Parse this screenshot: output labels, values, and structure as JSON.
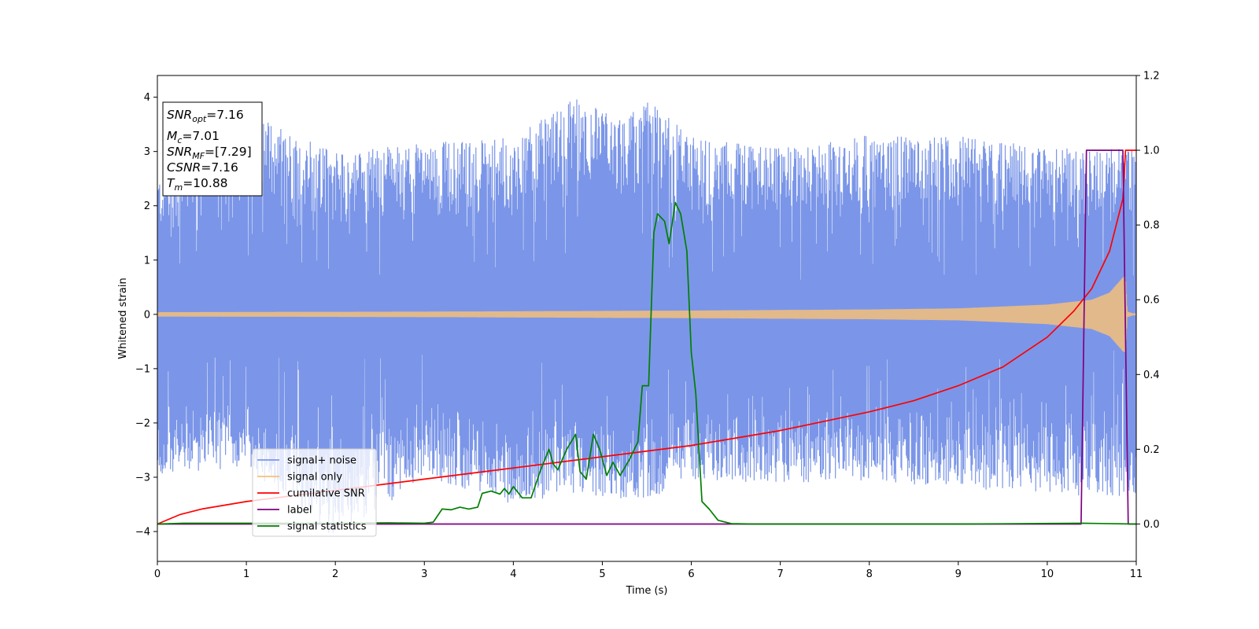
{
  "chart_data": {
    "type": "line",
    "xlabel": "Time (s)",
    "ylabel": "Whitened strain",
    "xlim": [
      0,
      11
    ],
    "ylim_left": [
      -4.55,
      4.4
    ],
    "ylim_right": [
      -0.1,
      1.2
    ],
    "x_ticks": [
      0,
      1,
      2,
      3,
      4,
      5,
      6,
      7,
      8,
      9,
      10,
      11
    ],
    "y_ticks_left": [
      -4,
      -3,
      -2,
      -1,
      0,
      1,
      2,
      3,
      4
    ],
    "y_ticks_right": [
      0.0,
      0.2,
      0.4,
      0.6,
      0.8,
      1.0,
      1.2
    ],
    "y_tick_labels_right": [
      "0.0",
      "0.2",
      "0.4",
      "0.6",
      "0.8",
      "1.0",
      "1.2"
    ],
    "grid": false,
    "legend_placement": "lower-left",
    "annotation_box": {
      "lines": [
        {
          "sym": "SNR",
          "sub": "opt",
          "val": "=7.16"
        },
        {
          "sym": "M",
          "sub": "c",
          "val": "=7.01"
        },
        {
          "sym": "SNR",
          "sub": "MF",
          "val": "=[7.29]"
        },
        {
          "sym": "CSNR",
          "sub": "",
          "val": "=7.16"
        },
        {
          "sym": "T",
          "sub": "m",
          "val": "=10.88"
        }
      ]
    },
    "series": [
      {
        "name": "signal+ noise",
        "color": "#7b96e8",
        "axis": "left",
        "kind": "noise_band",
        "envelope": {
          "t": [
            0,
            1,
            2,
            3,
            4,
            4.7,
            5.2,
            5.5,
            6,
            7,
            8,
            9,
            10,
            10.9,
            11
          ],
          "max": [
            2.5,
            3.75,
            3.0,
            3.15,
            3.25,
            4.0,
            3.6,
            3.95,
            3.3,
            3.05,
            3.3,
            3.3,
            3.05,
            3.05,
            3.0
          ],
          "min": [
            -3.0,
            -2.8,
            -4.15,
            -3.0,
            -3.5,
            -3.3,
            -3.4,
            -3.4,
            -3.05,
            -3.1,
            -3.05,
            -3.2,
            -3.3,
            -3.4,
            -3.3
          ]
        }
      },
      {
        "name": "signal only",
        "color": "#f5c07a",
        "axis": "left",
        "kind": "chirp",
        "amplitude": {
          "t": [
            0,
            3,
            6,
            8,
            9,
            10,
            10.5,
            10.7,
            10.85,
            10.88,
            10.9,
            11
          ],
          "amp": [
            0.04,
            0.05,
            0.07,
            0.09,
            0.11,
            0.18,
            0.27,
            0.4,
            0.68,
            0.7,
            0.05,
            0.0
          ]
        }
      },
      {
        "name": "cumilative SNR",
        "color": "#ff0000",
        "axis": "right",
        "x": [
          0,
          0.25,
          0.5,
          1,
          2,
          3,
          4,
          5,
          6,
          7,
          8,
          8.5,
          9,
          9.5,
          10,
          10.3,
          10.5,
          10.7,
          10.85,
          10.88,
          11
        ],
        "y": [
          0.0,
          0.025,
          0.04,
          0.06,
          0.09,
          0.12,
          0.15,
          0.18,
          0.21,
          0.25,
          0.3,
          0.33,
          0.37,
          0.42,
          0.5,
          0.57,
          0.63,
          0.73,
          0.87,
          1.0,
          1.0
        ]
      },
      {
        "name": "label",
        "color": "#800080",
        "axis": "right",
        "x": [
          0,
          10.38,
          10.44,
          10.85,
          10.91,
          11
        ],
        "y": [
          0,
          0,
          1,
          1,
          0,
          0
        ]
      },
      {
        "name": "signal statistics",
        "color": "#008000",
        "axis": "right",
        "x": [
          0,
          0.3,
          1.0,
          2.0,
          2.6,
          3.0,
          3.1,
          3.2,
          3.3,
          3.4,
          3.5,
          3.6,
          3.65,
          3.75,
          3.85,
          3.9,
          3.95,
          4.0,
          4.1,
          4.2,
          4.3,
          4.4,
          4.45,
          4.5,
          4.6,
          4.7,
          4.75,
          4.82,
          4.9,
          4.97,
          5.05,
          5.12,
          5.2,
          5.3,
          5.4,
          5.45,
          5.52,
          5.58,
          5.62,
          5.7,
          5.75,
          5.82,
          5.88,
          5.95,
          6.0,
          6.05,
          6.12,
          6.2,
          6.3,
          6.45,
          6.7,
          8.0,
          9.0,
          10.4,
          11.0
        ],
        "y": [
          0.0,
          0.002,
          0.002,
          0.002,
          0.003,
          0.002,
          0.005,
          0.04,
          0.038,
          0.045,
          0.04,
          0.045,
          0.082,
          0.088,
          0.08,
          0.095,
          0.08,
          0.1,
          0.07,
          0.07,
          0.14,
          0.2,
          0.16,
          0.145,
          0.2,
          0.24,
          0.14,
          0.12,
          0.24,
          0.2,
          0.13,
          0.165,
          0.13,
          0.17,
          0.22,
          0.37,
          0.37,
          0.78,
          0.83,
          0.81,
          0.75,
          0.86,
          0.83,
          0.73,
          0.46,
          0.35,
          0.06,
          0.04,
          0.01,
          0.001,
          0.0,
          0.0,
          0.0,
          0.002,
          0.0
        ]
      }
    ]
  }
}
